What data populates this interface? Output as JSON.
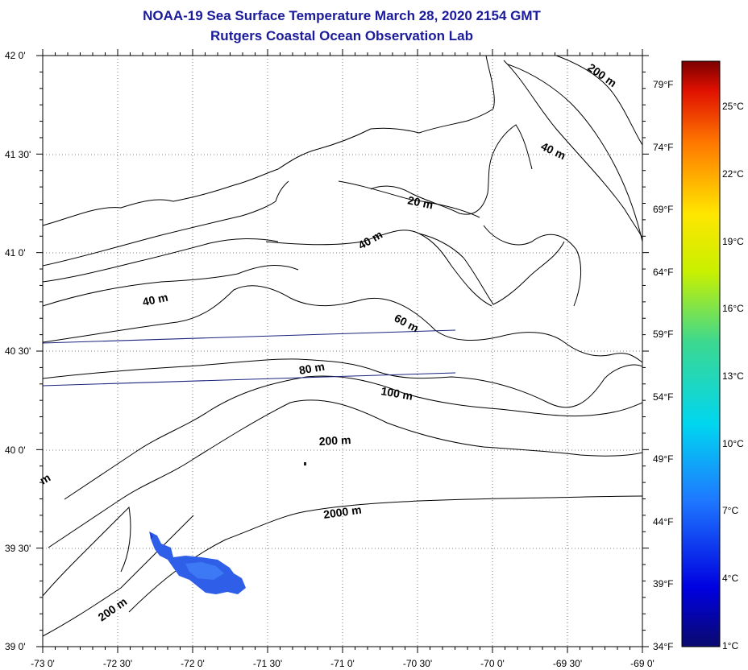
{
  "title": "NOAA-19 Sea Surface Temperature March 28, 2020 2154 GMT",
  "subtitle": "Rutgers Coastal Ocean Observation Lab",
  "lat_labels": [
    "42 0'",
    "41 30'",
    "41 0'",
    "40 30'",
    "40 0'",
    "39 30'",
    "39 0'"
  ],
  "lon_labels": [
    "-73 0'",
    "-72 30'",
    "-72 0'",
    "-71 30'",
    "-71 0'",
    "-70 30'",
    "-70 0'",
    "-69 30'",
    "-69 0'"
  ],
  "fahrenheit_labels": [
    "79°F",
    "74°F",
    "69°F",
    "64°F",
    "59°F",
    "54°F",
    "49°F",
    "44°F",
    "39°F",
    "34°F"
  ],
  "celsius_labels": [
    "25°C",
    "22°C",
    "19°C",
    "16°C",
    "13°C",
    "10°C",
    "7°C",
    "4°C",
    "1°C"
  ],
  "contour_labels": {
    "c200_ne": "200 m",
    "c40_ne": "40 m",
    "c20": "20 m",
    "c40_mid": "40 m",
    "c40_w": "40 m",
    "c60": "60 m",
    "c80": "80 m",
    "c100": "100 m",
    "c200_mid": "200 m",
    "c2000": "2000 m",
    "c200_sw": "200 m",
    "cm_edge": "m"
  },
  "colors": {
    "title": "#1a1a9a",
    "coast": "#000000",
    "track": "#1a237e",
    "sst_patch": "#2f5fe8"
  }
}
